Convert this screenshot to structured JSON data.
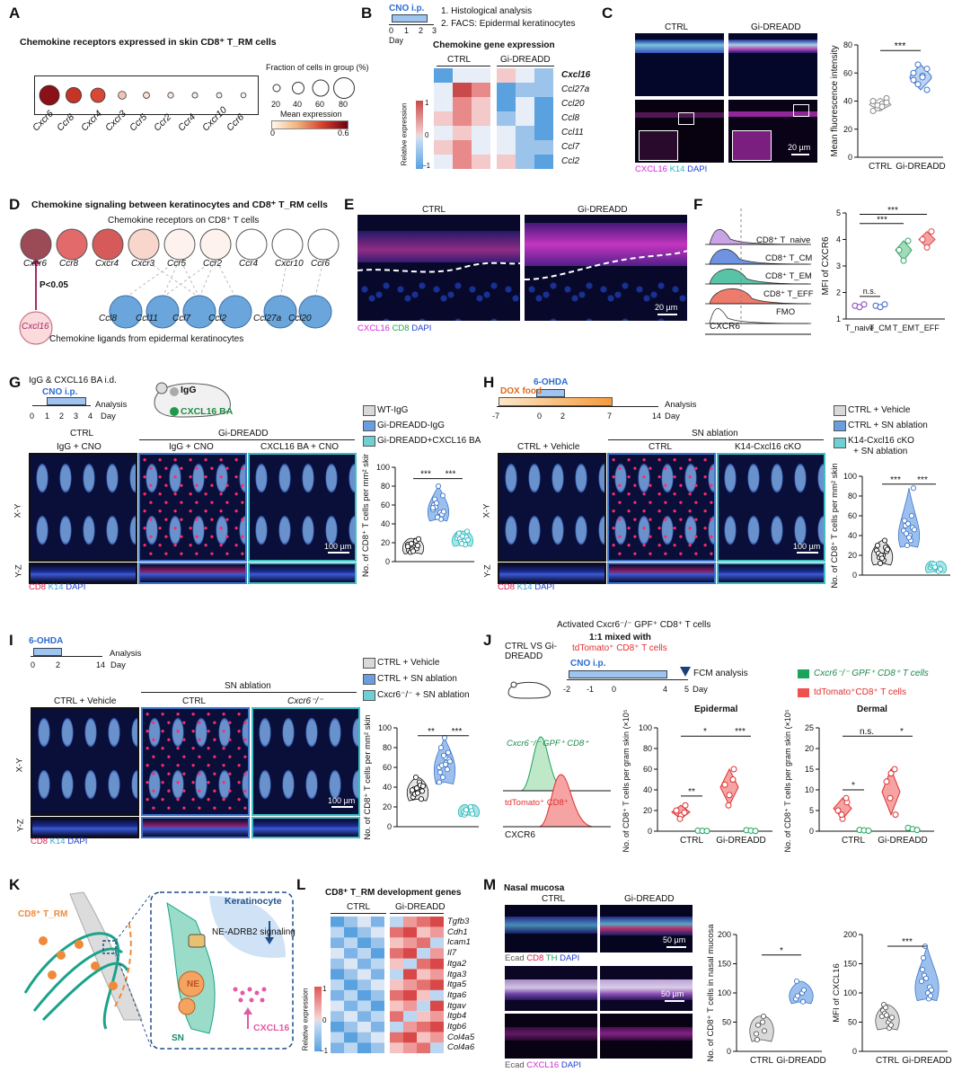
{
  "panels": {
    "A": "A",
    "B": "B",
    "C": "C",
    "D": "D",
    "E": "E",
    "F": "F",
    "G": "G",
    "H": "H",
    "I": "I",
    "J": "J",
    "K": "K",
    "L": "L",
    "M": "M"
  },
  "a": {
    "title": "Chemokine receptors expressed in skin CD8⁺ T_RM cells",
    "genes": [
      "Cxcr6",
      "Ccr8",
      "Cxcr4",
      "Cxcr3",
      "Ccr5",
      "Ccr2",
      "Ccr4",
      "Cxcr10",
      "Ccr6"
    ],
    "frac_title": "Fraction of cells in group (%)",
    "frac_ticks": [
      "20",
      "40",
      "60",
      "80"
    ],
    "mean_title": "Mean expression",
    "mean_min": "0",
    "mean_max": "0.6",
    "dot_fraction": [
      75,
      55,
      50,
      20,
      12,
      10,
      9,
      8,
      7
    ],
    "dot_mean": [
      0.55,
      0.45,
      0.4,
      0.12,
      0.05,
      0.04,
      0.03,
      0.02,
      0.02
    ]
  },
  "b": {
    "cno": "CNO i.p.",
    "days": [
      "0",
      "1",
      "2",
      "3"
    ],
    "day_label": "Day",
    "steps": [
      "1. Histological analysis",
      "2. FACS: Epidermal keratinocytes"
    ],
    "title": "Chemokine gene expression",
    "ctrl": "CTRL",
    "gi": "Gi-DREADD",
    "genes": [
      "Cxcl16",
      "Ccl27a",
      "Ccl20",
      "Ccl8",
      "Ccl11",
      "Ccl7",
      "Ccl2"
    ],
    "scale_label": "Relative expression",
    "scale_ticks": [
      "1",
      "0",
      "−1"
    ],
    "colors": [
      "#c94a4a",
      "#e88a8a",
      "#f3c9c9",
      "#e7eef7",
      "#9cc3ea",
      "#5aa1e0"
    ]
  },
  "c": {
    "ctrl": "CTRL",
    "gi": "Gi-DREADD",
    "scale": "20 µm",
    "legend": [
      "CXCL16",
      "K14",
      "DAPI"
    ],
    "ylabel": "Mean fluorescence intensity",
    "sig": "***",
    "xcats": [
      "CTRL",
      "Gi-DREADD"
    ],
    "yticks": [
      "0",
      "20",
      "40",
      "60",
      "80"
    ]
  },
  "d": {
    "title": "Chemokine signaling between keratinocytes and CD8⁺ T_RM cells",
    "subtitle": "Chemokine receptors on CD8⁺ T cells",
    "receptors": [
      "Cxcr6",
      "Ccr8",
      "Cxcr4",
      "Cxcr3",
      "Ccr5",
      "Ccr2",
      "Ccr4",
      "Cxcr10",
      "Ccr6"
    ],
    "pval": "P<0.05",
    "ligand_main": "Cxcl16",
    "ligands": [
      "Ccl8",
      "Ccl11",
      "Ccl7",
      "Ccl2",
      "Ccl27a",
      "Ccl20"
    ],
    "footer": "Chemokine ligands from epidermal keratinocytes"
  },
  "e": {
    "ctrl": "CTRL",
    "gi": "Gi-DREADD",
    "scale": "20 µm",
    "legend": [
      "CXCL16",
      "CD8",
      "DAPI"
    ]
  },
  "f": {
    "rows": [
      "CD8⁺ T_naive",
      "CD8⁺ T_CM",
      "CD8⁺ T_EM",
      "CD8⁺ T_EFF",
      "FMO"
    ],
    "xlabel": "CXCR6",
    "ylabel": "MFI of CXCR6",
    "ns": "n.s.",
    "sig": [
      "***",
      "***"
    ],
    "xcats": [
      "T_naive",
      "T_CM",
      "T_EM",
      "T_EFF"
    ],
    "yticks": [
      "1",
      "2",
      "3",
      "4",
      "5"
    ]
  },
  "g": {
    "top1": "IgG & CXCL16 BA i.d.",
    "cno": "CNO i.p.",
    "days": [
      "0",
      "1",
      "2",
      "3",
      "4"
    ],
    "analysis": "Analysis",
    "day": "Day",
    "mouse_igg": "IgG",
    "mouse_ba": "CXCL16 BA",
    "legend": [
      "WT-IgG",
      "Gi-DREADD-IgG",
      "Gi-DREADD+CXCL16 BA"
    ],
    "ctrl": "CTRL",
    "gi": "Gi-DREADD",
    "sub": [
      "IgG + CNO",
      "IgG + CNO",
      "CXCL16 BA + CNO"
    ],
    "scale": "100 µm",
    "xy": "X-Y",
    "yz": "Y-Z",
    "chan": [
      "CD8",
      "K14",
      "DAPI"
    ],
    "ylabel": "No. of CD8⁺ T cells per mm² skin",
    "sig": [
      "***",
      "***"
    ],
    "yticks": [
      "0",
      "20",
      "40",
      "60",
      "80",
      "100"
    ]
  },
  "h": {
    "food": "DOX food",
    "ohda": "6-OHDA",
    "days": [
      "-7",
      "0",
      "2",
      "7",
      "14"
    ],
    "analysis": "Analysis",
    "day": "Day",
    "legend": [
      "CTRL + Vehicle",
      "CTRL + SN ablation",
      "K14-Cxcl16 cKO",
      "+ SN ablation"
    ],
    "sub": [
      "CTRL + Vehicle",
      "CTRL",
      "K14-Cxcl16 cKO"
    ],
    "snab": "SN ablation",
    "scale": "100 µm",
    "xy": "X-Y",
    "yz": "Y-Z",
    "chan": [
      "CD8",
      "K14",
      "DAPI"
    ],
    "ylabel": "No. of CD8⁺ T cells per mm² skin",
    "sig": [
      "***",
      "***"
    ],
    "yticks": [
      "0",
      "20",
      "40",
      "60",
      "80",
      "100"
    ]
  },
  "i": {
    "ohda": "6-OHDA",
    "days": [
      "0",
      "2",
      "14"
    ],
    "analysis": "Analysis",
    "day": "Day",
    "legend": [
      "CTRL + Vehicle",
      "CTRL + SN ablation",
      "Cxcr6⁻/⁻ + SN ablation"
    ],
    "sub": [
      "CTRL + Vehicle",
      "CTRL",
      "Cxcr6⁻/⁻"
    ],
    "snab": "SN ablation",
    "scale": "100 µm",
    "xy": "X-Y",
    "yz": "Y-Z",
    "chan": [
      "CD8",
      "K14",
      "DAPI"
    ],
    "ylabel": "No. of CD8⁺ T cells per mm² skin",
    "sig": [
      "**",
      "***"
    ],
    "yticks": [
      "0",
      "20",
      "40",
      "60",
      "80",
      "100"
    ]
  },
  "j": {
    "mice": "CTRL VS Gi-DREADD",
    "activated": "Activated Cxcr6⁻/⁻ GPF⁺ CD8⁺ T cells",
    "mix": "1:1 mixed with",
    "td": "tdTomato⁺ CD8⁺ T cells",
    "cno": "CNO i.p.",
    "days": [
      "-2",
      "-1",
      "0",
      "4",
      "5"
    ],
    "day": "Day",
    "fcm": "FCM analysis",
    "hist_gfp": "Cxcr6⁻/⁻ GPF⁺ CD8⁺",
    "hist_td": "tdTomato⁺ CD8⁺",
    "xlabel": "CXCR6",
    "legend": [
      "Cxcr6⁻/⁻ GPF⁺ CD8⁺ T cells",
      "tdTomato⁺CD8⁺ T cells"
    ],
    "epi": "Epidermal",
    "der": "Dermal",
    "ylabel": "No. of CD8⁺ T cells per gram skin (×10⁵)",
    "xcats": [
      "CTRL",
      "Gi-DREADD"
    ],
    "epi_sig": [
      "*",
      "**",
      "***"
    ],
    "der_sig": [
      "n.s.",
      "*",
      "*"
    ],
    "epi_yticks": [
      "0",
      "20",
      "40",
      "60",
      "80",
      "100"
    ],
    "der_yticks": [
      "0",
      "5",
      "10",
      "15",
      "20",
      "25"
    ]
  },
  "k": {
    "cd8": "CD8⁺ T_RM",
    "kera": "Keratinocyte",
    "signal": "NE-ADRB2 signaling",
    "ne": "NE",
    "sn": "SN",
    "cxcl16": "CXCL16"
  },
  "l": {
    "title": "CD8⁺ T_RM development genes",
    "ctrl": "CTRL",
    "gi": "Gi-DREADD",
    "genes": [
      "Tgfb3",
      "Cdh1",
      "Icam1",
      "Il7",
      "Itga2",
      "Itga3",
      "Itga5",
      "Itga6",
      "Itgav",
      "Itgb4",
      "Itgb6",
      "Col4a5",
      "Col4a6"
    ],
    "scale_label": "Relative expression",
    "scale_ticks": [
      "1",
      "0",
      "−1"
    ]
  },
  "m": {
    "title": "Nasal mucosa",
    "ctrl": "CTRL",
    "gi": "Gi-DREADD",
    "scale1": "50 µm",
    "scale2": "50 µm",
    "legend1": [
      "Ecad",
      "CD8",
      "TH",
      "DAPI"
    ],
    "legend2": [
      "Ecad",
      "CXCL16",
      "DAPI"
    ],
    "ylabel1": "No. of CD8⁺ T cells in nasal mucosa",
    "ylabel2": "MFI of CXCL16",
    "sig1": "*",
    "sig2": "***",
    "xcats": [
      "CTRL",
      "Gi-DREADD"
    ],
    "yticks1": [
      "0",
      "50",
      "100",
      "150",
      "200"
    ],
    "yticks2": [
      "0",
      "50",
      "100",
      "150",
      "200"
    ]
  }
}
